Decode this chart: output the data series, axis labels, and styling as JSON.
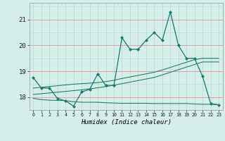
{
  "x": [
    0,
    1,
    2,
    3,
    4,
    5,
    6,
    7,
    8,
    9,
    10,
    11,
    12,
    13,
    14,
    15,
    16,
    17,
    18,
    19,
    20,
    21,
    22,
    23
  ],
  "y_main": [
    18.75,
    18.35,
    18.35,
    17.95,
    17.85,
    17.65,
    18.2,
    18.3,
    18.9,
    18.45,
    18.45,
    20.3,
    19.85,
    19.85,
    20.2,
    20.5,
    20.2,
    21.3,
    20.0,
    19.5,
    19.5,
    18.8,
    17.75,
    17.7
  ],
  "y_trend1": [
    18.35,
    18.38,
    18.41,
    18.44,
    18.47,
    18.5,
    18.52,
    18.54,
    18.56,
    18.6,
    18.65,
    18.72,
    18.78,
    18.84,
    18.9,
    18.96,
    19.05,
    19.15,
    19.25,
    19.35,
    19.45,
    19.5,
    19.5,
    19.5
  ],
  "y_trend2": [
    18.1,
    18.13,
    18.16,
    18.19,
    18.22,
    18.25,
    18.28,
    18.32,
    18.36,
    18.41,
    18.46,
    18.52,
    18.58,
    18.64,
    18.7,
    18.76,
    18.86,
    18.96,
    19.06,
    19.16,
    19.26,
    19.36,
    19.36,
    19.36
  ],
  "y_flat": [
    17.95,
    17.9,
    17.88,
    17.87,
    17.86,
    17.82,
    17.8,
    17.8,
    17.8,
    17.78,
    17.77,
    17.76,
    17.76,
    17.76,
    17.76,
    17.75,
    17.75,
    17.75,
    17.75,
    17.75,
    17.73,
    17.72,
    17.72,
    17.7
  ],
  "line_color": "#1a7a6a",
  "bg_color": "#d5eeea",
  "grid_h_color": "#e0a0a0",
  "grid_v_color": "#b8ddd8",
  "xlabel": "Humidex (Indice chaleur)",
  "yticks": [
    18,
    19,
    20,
    21
  ],
  "xticks": [
    0,
    1,
    2,
    3,
    4,
    5,
    6,
    7,
    8,
    9,
    10,
    11,
    12,
    13,
    14,
    15,
    16,
    17,
    18,
    19,
    20,
    21,
    22,
    23
  ],
  "ylim": [
    17.5,
    21.65
  ],
  "xlim": [
    -0.5,
    23.5
  ]
}
